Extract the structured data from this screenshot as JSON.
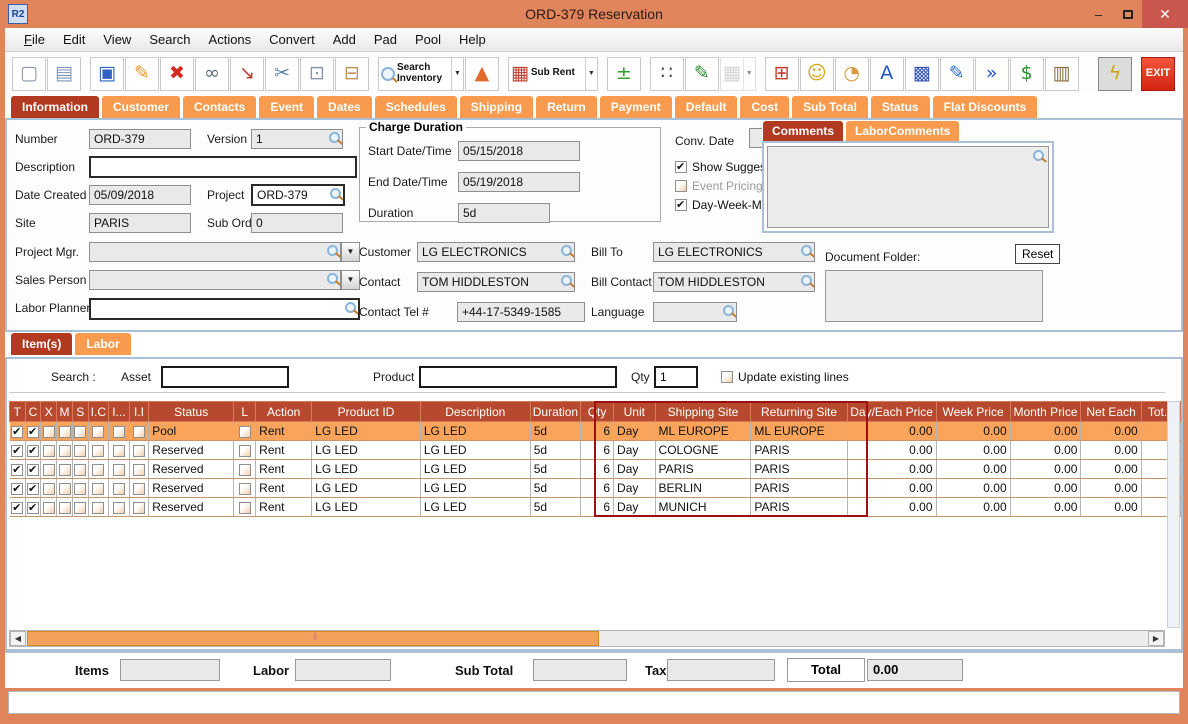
{
  "window": {
    "title": "ORD-379 Reservation",
    "app_initials": "R2",
    "controls": {
      "minimize": "–",
      "close": "✕"
    }
  },
  "menu": {
    "items": [
      "File",
      "Edit",
      "View",
      "Search",
      "Actions",
      "Convert",
      "Add",
      "Pad",
      "Pool",
      "Help"
    ]
  },
  "toolbar": {
    "buttons": [
      {
        "name": "new-document",
        "icon": "new-document-icon",
        "glyph": "▢",
        "color": "#8a97a8"
      },
      {
        "name": "print",
        "icon": "printer-icon",
        "glyph": "▤",
        "color": "#7d96b5"
      },
      {
        "name": "save",
        "icon": "save-icon",
        "glyph": "▣",
        "color": "#2f62c4",
        "gap": true
      },
      {
        "name": "edit",
        "icon": "pencil-icon",
        "glyph": "✎",
        "color": "#e8972e"
      },
      {
        "name": "delete",
        "icon": "delete-icon",
        "glyph": "✖",
        "color": "#d42a1e"
      },
      {
        "name": "find",
        "icon": "binoculars-icon",
        "glyph": "∞",
        "color": "#5d6c7b"
      },
      {
        "name": "export-document",
        "icon": "export-document-icon",
        "glyph": "↘",
        "color": "#c43a2a"
      },
      {
        "name": "cut",
        "icon": "scissors-icon",
        "glyph": "✂",
        "color": "#5b7fa6"
      },
      {
        "name": "copy",
        "icon": "copy-icon",
        "glyph": "⊡",
        "color": "#8a97a8"
      },
      {
        "name": "paste",
        "icon": "paste-icon",
        "glyph": "⊟",
        "color": "#b9935a"
      },
      {
        "name": "search-inventory",
        "icon": "magnifier-icon",
        "glyph": "",
        "color": "#c8860a",
        "label": "Search Inventory",
        "dropdown": true,
        "gap": true
      },
      {
        "name": "inventory-shapes",
        "icon": "3d-shapes-icon",
        "glyph": "▲",
        "color": "#e06a2b"
      },
      {
        "name": "sub-rent",
        "icon": "factory-icon",
        "glyph": "▦",
        "color": "#c03a2a",
        "label": "Sub Rent",
        "dropdown": true,
        "gap": true
      },
      {
        "name": "add-line",
        "icon": "plus-minus-icon",
        "glyph": "±",
        "color": "#2f9e2f",
        "gap": true
      },
      {
        "name": "group-lookup",
        "icon": "people-icon",
        "glyph": "∷",
        "color": "#4a4a4a",
        "gap": true
      },
      {
        "name": "notes",
        "icon": "notepad-icon",
        "glyph": "✎",
        "color": "#2e8b2e"
      },
      {
        "name": "calendar",
        "icon": "calendar-icon",
        "glyph": "▦",
        "color": "#b5b5b5",
        "dropdown": true,
        "disabled": true
      },
      {
        "name": "org-chart",
        "icon": "org-chart-icon",
        "glyph": "⊞",
        "color": "#c03a2a",
        "gap": true
      },
      {
        "name": "smiley",
        "icon": "smiley-icon",
        "glyph": "☺",
        "color": "#d7a516"
      },
      {
        "name": "folder-history",
        "icon": "folder-clock-icon",
        "glyph": "◔",
        "color": "#d69a3c"
      },
      {
        "name": "key-a",
        "icon": "keyboard-key-icon",
        "glyph": "A",
        "color": "#2255cc"
      },
      {
        "name": "blocks",
        "icon": "blocks-icon",
        "glyph": "▩",
        "color": "#3355bb"
      },
      {
        "name": "document-edit",
        "icon": "document-edit-icon",
        "glyph": "✎",
        "color": "#2f6fd0"
      },
      {
        "name": "transfer-money",
        "icon": "dollar-arrows-icon",
        "glyph": "»",
        "color": "#2255cc"
      },
      {
        "name": "price-notes",
        "icon": "dollar-notes-icon",
        "glyph": "$",
        "color": "#2e8b2e"
      },
      {
        "name": "truck",
        "icon": "truck-icon",
        "glyph": "▥",
        "color": "#8b6f3f"
      },
      {
        "name": "quick-actions",
        "icon": "lightning-icon",
        "glyph": "ϟ",
        "color": "#c9a800",
        "pressed": true,
        "push_right": true
      },
      {
        "name": "exit",
        "icon": "exit-icon",
        "glyph": "",
        "color": "#ffffff",
        "label": "EXIT",
        "exit": true,
        "gap": true
      }
    ]
  },
  "tabs": {
    "active": "Information",
    "items": [
      "Information",
      "Customer",
      "Contacts",
      "Event",
      "Dates",
      "Schedules",
      "Shipping",
      "Return",
      "Payment",
      "Default",
      "Cost",
      "Sub Total",
      "Status",
      "Flat Discounts"
    ]
  },
  "info": {
    "number": {
      "label": "Number",
      "value": "ORD-379"
    },
    "version": {
      "label": "Version",
      "value": "1"
    },
    "description": {
      "label": "Description",
      "value": ""
    },
    "date_created": {
      "label": "Date Created",
      "value": "05/09/2018"
    },
    "project": {
      "label": "Project",
      "value": "ORD-379"
    },
    "site": {
      "label": "Site",
      "value": "PARIS"
    },
    "sub_orders": {
      "label": "Sub Orders",
      "value": "0"
    },
    "project_mgr": {
      "label": "Project Mgr.",
      "value": ""
    },
    "sales_person": {
      "label": "Sales Person",
      "value": ""
    },
    "labor_planner": {
      "label": "Labor Planner",
      "value": ""
    },
    "charge_duration": {
      "title": "Charge Duration",
      "start": {
        "label": "Start Date/Time",
        "value": "05/15/2018"
      },
      "end": {
        "label": "End Date/Time",
        "value": "05/19/2018"
      },
      "duration": {
        "label": "Duration",
        "value": "5d"
      }
    },
    "conv_date": {
      "label": "Conv. Date",
      "value": ""
    },
    "checkboxes": [
      {
        "label": "Show Suggestions",
        "checked": true,
        "enabled": true
      },
      {
        "label": "Event Pricing",
        "checked": false,
        "enabled": false
      },
      {
        "label": "Day-Week-Month Pricing",
        "checked": true,
        "enabled": true
      }
    ],
    "customer": {
      "label": "Customer",
      "value": "LG ELECTRONICS"
    },
    "bill_to": {
      "label": "Bill To",
      "value": "LG ELECTRONICS"
    },
    "contact": {
      "label": "Contact",
      "value": "TOM HIDDLESTON"
    },
    "bill_contact": {
      "label": "Bill Contact",
      "value": "TOM HIDDLESTON"
    },
    "contact_tel": {
      "label": "Contact Tel #",
      "value": "+44-17-5349-1585"
    },
    "language": {
      "label": "Language",
      "value": ""
    },
    "comments_tabs": [
      "Comments",
      "LaborComments"
    ],
    "comments_active": "Comments",
    "document_folder_label": "Document Folder:",
    "reset_button": "Reset"
  },
  "items_section": {
    "tabs": [
      "Item(s)",
      "Labor"
    ],
    "active_tab": "Item(s)",
    "search": {
      "label": "Search :",
      "asset_label": "Asset",
      "asset_value": "",
      "product_label": "Product",
      "product_value": "",
      "qty_label": "Qty",
      "qty_value": "1",
      "update_checkbox": "Update existing lines",
      "update_checked": false
    },
    "table": {
      "columns": [
        "T",
        "C",
        "X",
        "M",
        "S",
        "I.C",
        "I...",
        "I.I",
        "Status",
        "L",
        "Action",
        "Product ID",
        "Description",
        "Duration",
        "Qty",
        "Unit",
        "Shipping Site",
        "Returning Site",
        "Day/Each Price",
        "Week Price",
        "Month Price",
        "Net Each",
        "Tot..."
      ],
      "rows": [
        {
          "t": true,
          "c": true,
          "status": "Pool",
          "l": false,
          "action": "Rent",
          "product_id": "LG LED",
          "description": "LG LED",
          "duration": "5d",
          "qty": "6",
          "unit": "Day",
          "shipping_site": "ML EUROPE",
          "returning_site": "ML EUROPE",
          "prices": [
            "0.00",
            "0.00",
            "0.00",
            "0.00"
          ],
          "selected": true
        },
        {
          "t": true,
          "c": true,
          "status": "Reserved",
          "l": false,
          "action": "Rent",
          "product_id": "LG LED",
          "description": "LG LED",
          "duration": "5d",
          "qty": "6",
          "unit": "Day",
          "shipping_site": "COLOGNE",
          "returning_site": "PARIS",
          "prices": [
            "0.00",
            "0.00",
            "0.00",
            "0.00"
          ],
          "selected": false
        },
        {
          "t": true,
          "c": true,
          "status": "Reserved",
          "l": false,
          "action": "Rent",
          "product_id": "LG LED",
          "description": "LG LED",
          "duration": "5d",
          "qty": "6",
          "unit": "Day",
          "shipping_site": "PARIS",
          "returning_site": "PARIS",
          "prices": [
            "0.00",
            "0.00",
            "0.00",
            "0.00"
          ],
          "selected": false
        },
        {
          "t": true,
          "c": true,
          "status": "Reserved",
          "l": false,
          "action": "Rent",
          "product_id": "LG LED",
          "description": "LG LED",
          "duration": "5d",
          "qty": "6",
          "unit": "Day",
          "shipping_site": "BERLIN",
          "returning_site": "PARIS",
          "prices": [
            "0.00",
            "0.00",
            "0.00",
            "0.00"
          ],
          "selected": false
        },
        {
          "t": true,
          "c": true,
          "status": "Reserved",
          "l": false,
          "action": "Rent",
          "product_id": "LG LED",
          "description": "LG LED",
          "duration": "5d",
          "qty": "6",
          "unit": "Day",
          "shipping_site": "MUNICH",
          "returning_site": "PARIS",
          "prices": [
            "0.00",
            "0.00",
            "0.00",
            "0.00"
          ],
          "selected": false
        }
      ],
      "highlight_columns": [
        "Qty",
        "Unit",
        "Shipping Site",
        "Returning Site"
      ]
    }
  },
  "totals": {
    "items_label": "Items",
    "items_value": "",
    "labor_label": "Labor",
    "labor_value": "",
    "sub_total_label": "Sub Total",
    "sub_total_value": "",
    "tax_label": "Tax",
    "tax_value": "",
    "total_label": "Total",
    "total_value": "0.00"
  },
  "colors": {
    "window_orange": "#e0845c",
    "tab_orange": "#f89b4e",
    "active_tab_red": "#b23a20",
    "table_header_red": "#b74a2e",
    "selected_row_orange": "#f9a35b",
    "highlight_border_red": "#9e1010",
    "exit_red": "#d42310",
    "close_button_red": "#c9574d"
  }
}
